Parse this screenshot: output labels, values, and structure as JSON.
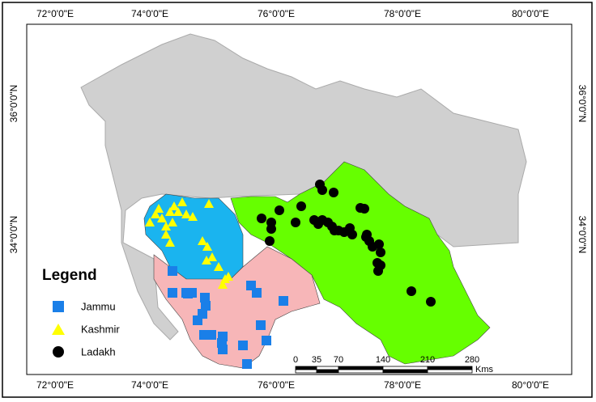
{
  "map": {
    "top_labels": [
      "72°0'0\"E",
      "74°0'0\"E",
      "76°0'0\"E",
      "78°0'0\"E",
      "80°0'0\"E"
    ],
    "bottom_labels": [
      "72°0'0\"E",
      "74°0'0\"E",
      "76°0'0\"E",
      "78°0'0\"E",
      "80°0'0\"E"
    ],
    "left_labels": [
      "36°0'0\"N",
      "34°0'0\"N"
    ],
    "right_labels": [
      "36°0'0\"N",
      "34°0'0\"N"
    ]
  },
  "legend": {
    "title": "Legend",
    "items": [
      "Jammu",
      "Kashmir",
      "Ladakh"
    ]
  },
  "scale_bar": {
    "ticks": [
      "0",
      "35",
      "70",
      "140",
      "210",
      "280"
    ],
    "unit": "Kms"
  }
}
